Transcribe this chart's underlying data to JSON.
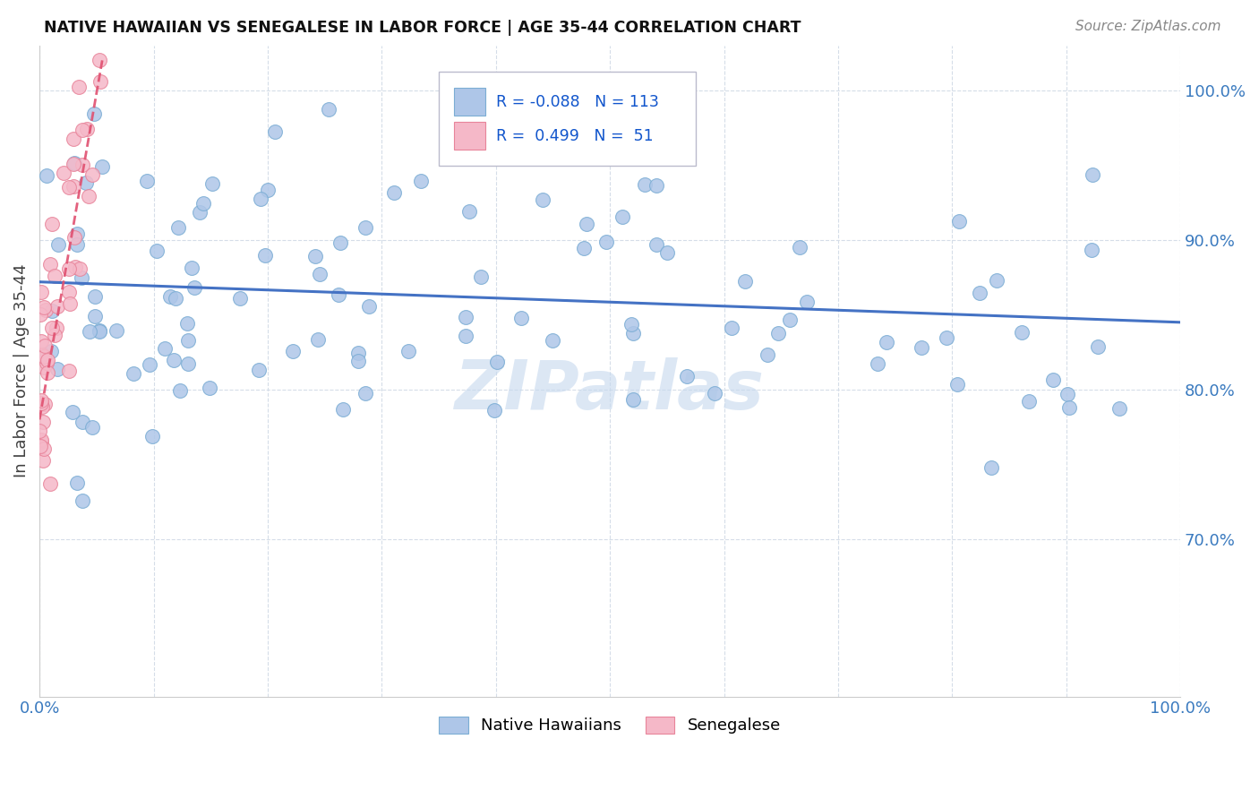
{
  "title": "NATIVE HAWAIIAN VS SENEGALESE IN LABOR FORCE | AGE 35-44 CORRELATION CHART",
  "source": "Source: ZipAtlas.com",
  "ylabel": "In Labor Force | Age 35-44",
  "xlim": [
    0.0,
    1.0
  ],
  "ylim": [
    0.595,
    1.03
  ],
  "x_ticks": [
    0.0,
    0.1,
    0.2,
    0.3,
    0.4,
    0.5,
    0.6,
    0.7,
    0.8,
    0.9,
    1.0
  ],
  "y_ticks_right": [
    0.7,
    0.8,
    0.9,
    1.0
  ],
  "y_tick_labels_right": [
    "70.0%",
    "80.0%",
    "90.0%",
    "100.0%"
  ],
  "blue_fill_color": "#aec6e8",
  "blue_edge_color": "#7badd4",
  "pink_fill_color": "#f5b8c8",
  "pink_edge_color": "#e8849a",
  "blue_line_color": "#4472c4",
  "pink_line_color": "#e05070",
  "legend_blue_label": "Native Hawaiians",
  "legend_pink_label": "Senegalese",
  "R_blue": -0.088,
  "N_blue": 113,
  "R_pink": 0.499,
  "N_pink": 51,
  "watermark": "ZIPatlas",
  "watermark_color": "#c5d8ee",
  "grid_color": "#d5dde8",
  "blue_line_start_y": 0.872,
  "blue_line_end_y": 0.845,
  "pink_line_start_x": 0.0,
  "pink_line_start_y": 0.78,
  "pink_line_end_x": 0.055,
  "pink_line_end_y": 1.02
}
